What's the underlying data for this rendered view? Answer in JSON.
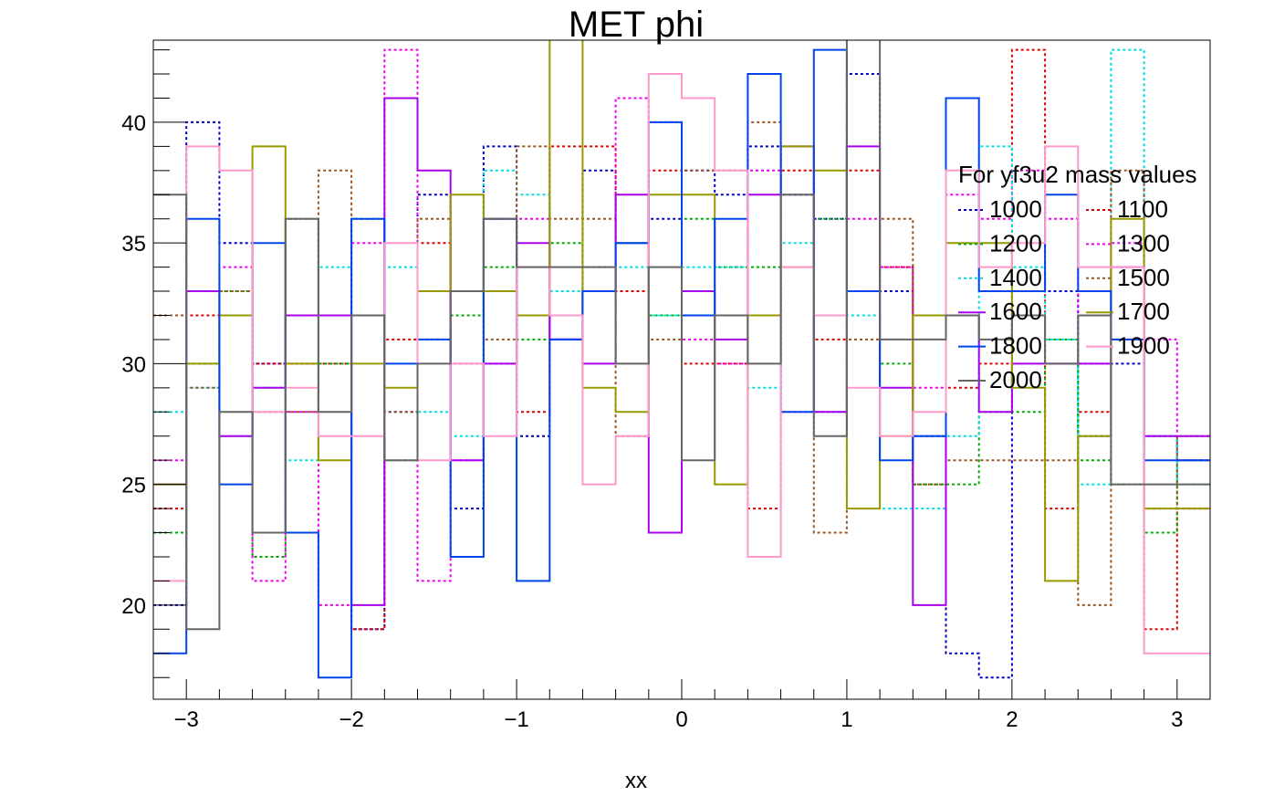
{
  "chart_data": {
    "type": "line",
    "title": "MET phi",
    "xlabel": "xx",
    "ylabel": "",
    "xlim": [
      -3.2,
      3.2
    ],
    "ylim": [
      16.1,
      43.4
    ],
    "x_ticks": [
      -3,
      -2,
      -1,
      0,
      1,
      2,
      3
    ],
    "x_tick_labels": [
      "−3",
      "−2",
      "−1",
      "0",
      "1",
      "2",
      "3"
    ],
    "y_ticks": [
      20,
      25,
      30,
      35,
      40
    ],
    "y_tick_labels": [
      "20",
      "25",
      "30",
      "35",
      "40"
    ],
    "bin_edges": [
      -3.2,
      -3.0,
      -2.8,
      -2.6,
      -2.4,
      -2.2,
      -2.0,
      -1.8,
      -1.6,
      -1.4,
      -1.2,
      -1.0,
      -0.8,
      -0.6,
      -0.4,
      -0.2,
      0.0,
      0.2,
      0.4,
      0.6,
      0.8,
      1.0,
      1.2,
      1.4,
      1.6,
      1.8,
      2.0,
      2.2,
      2.4,
      2.6,
      2.8,
      3.0,
      3.2
    ],
    "legend_title": "For yf3u2 mass values",
    "legend_position": "top-right",
    "grid": false,
    "series": [
      {
        "name": "1000",
        "color": "#0000cc",
        "dash": "dotted",
        "values": [
          20,
          40,
          35,
          30,
          32,
          32,
          19,
          28,
          37,
          24,
          39,
          27,
          31,
          38,
          35,
          36,
          38,
          37,
          39,
          37,
          36,
          42,
          33,
          27,
          18,
          17,
          33,
          33,
          27,
          30,
          27,
          26
        ]
      },
      {
        "name": "1100",
        "color": "#dd0000",
        "dash": "dotted",
        "values": [
          24,
          32,
          32,
          30,
          30,
          30,
          19,
          31,
          35,
          30,
          36,
          28,
          39,
          39,
          33,
          38,
          30,
          30,
          24,
          38,
          31,
          38,
          34,
          25,
          29,
          30,
          43,
          24,
          28,
          31,
          19,
          24
        ]
      },
      {
        "name": "1200",
        "color": "#00aa00",
        "dash": "dotted",
        "values": [
          23,
          30,
          33,
          22,
          36,
          30,
          36,
          26,
          31,
          32,
          34,
          31,
          35,
          34,
          35,
          32,
          36,
          34,
          34,
          34,
          36,
          33,
          30,
          25,
          25,
          28,
          28,
          31,
          26,
          25,
          23,
          26
        ]
      },
      {
        "name": "1300",
        "color": "#ee00ee",
        "dash": "dotted",
        "values": [
          26,
          33,
          34,
          21,
          28,
          20,
          35,
          43,
          21,
          26,
          30,
          36,
          31,
          33,
          41,
          40,
          31,
          30,
          38,
          28,
          28,
          36,
          34,
          29,
          37,
          36,
          38,
          36,
          30,
          35,
          31,
          26
        ]
      },
      {
        "name": "1400",
        "color": "#00dddd",
        "dash": "dotted",
        "values": [
          28,
          29,
          27,
          29,
          26,
          34,
          32,
          34,
          28,
          27,
          38,
          37,
          33,
          33,
          34,
          32,
          34,
          34,
          29,
          35,
          28,
          32,
          24,
          24,
          27,
          39,
          34,
          31,
          25,
          43,
          27,
          25
        ]
      },
      {
        "name": "1500",
        "color": "#995522",
        "dash": "dotted",
        "values": [
          32,
          29,
          33,
          28,
          28,
          38,
          32,
          28,
          36,
          33,
          31,
          39,
          36,
          36,
          27,
          31,
          38,
          38,
          40,
          34,
          23,
          31,
          36,
          25,
          26,
          26,
          26,
          26,
          20,
          38,
          24,
          27
        ]
      },
      {
        "name": "1600",
        "color": "#aa00ee",
        "dash": "solid",
        "values": [
          25,
          33,
          27,
          29,
          32,
          32,
          20,
          41,
          38,
          26,
          30,
          35,
          31,
          30,
          37,
          23,
          33,
          31,
          37,
          39,
          28,
          39,
          29,
          20,
          32,
          28,
          30,
          30,
          30,
          34,
          27,
          27
        ]
      },
      {
        "name": "1700",
        "color": "#999900",
        "dash": "solid",
        "values": [
          25,
          30,
          32,
          39,
          30,
          26,
          30,
          29,
          33,
          37,
          33,
          32,
          44,
          29,
          28,
          37,
          37,
          25,
          32,
          39,
          38,
          24,
          27,
          32,
          35,
          35,
          29,
          21,
          27,
          36,
          24,
          24
        ]
      },
      {
        "name": "1800",
        "color": "#0044ee",
        "dash": "solid",
        "values": [
          18,
          36,
          25,
          35,
          23,
          17,
          36,
          30,
          31,
          22,
          36,
          21,
          31,
          33,
          35,
          40,
          32,
          36,
          42,
          28,
          43,
          33,
          26,
          27,
          41,
          33,
          33,
          37,
          33,
          31,
          26,
          26
        ]
      },
      {
        "name": "1900",
        "color": "#ff99cc",
        "dash": "solid",
        "values": [
          21,
          39,
          38,
          28,
          29,
          27,
          27,
          35,
          26,
          30,
          27,
          34,
          32,
          25,
          27,
          42,
          41,
          38,
          22,
          34,
          32,
          29,
          27,
          28,
          38,
          34,
          35,
          39,
          34,
          34,
          18,
          18
        ]
      },
      {
        "name": "2000",
        "color": "#666666",
        "dash": "solid",
        "values": [
          37,
          19,
          28,
          23,
          36,
          28,
          32,
          26,
          30,
          33,
          36,
          34,
          34,
          34,
          30,
          34,
          26,
          32,
          30,
          37,
          27,
          50,
          31,
          31,
          32,
          31,
          32,
          30,
          32,
          25,
          25,
          25
        ]
      }
    ]
  }
}
